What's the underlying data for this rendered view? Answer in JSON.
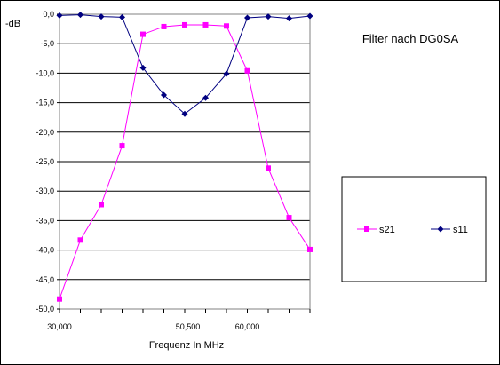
{
  "chart_data": {
    "type": "line",
    "title": "Filter nach DG0SA",
    "xlabel": "Frequenz In MHz",
    "ylabel": "-dB",
    "xlim": [
      30000,
      70000
    ],
    "ylim": [
      -50,
      0
    ],
    "x_tick_labels": [
      {
        "x": 30000,
        "label": "30,000"
      },
      {
        "x": 50500,
        "label": "50,500"
      },
      {
        "x": 60000,
        "label": "60,000"
      }
    ],
    "y_ticks": [
      0,
      -5,
      -10,
      -15,
      -20,
      -25,
      -30,
      -35,
      -40,
      -45,
      -50
    ],
    "y_tick_labels": [
      "0,0",
      "-5,0",
      "-10,0",
      "-15,0",
      "-20,0",
      "-25,0",
      "-30,0",
      "-35,0",
      "-40,0",
      "-45,0",
      "-50,0"
    ],
    "grid": "horizontal",
    "legend_position": "right",
    "series": [
      {
        "name": "s21",
        "color": "#ff00ff",
        "marker": "square",
        "points": [
          {
            "x": 30000,
            "y": -48.3
          },
          {
            "x": 33333,
            "y": -38.3
          },
          {
            "x": 36667,
            "y": -32.3
          },
          {
            "x": 40000,
            "y": -22.3
          },
          {
            "x": 43333,
            "y": -3.4
          },
          {
            "x": 46667,
            "y": -2.1
          },
          {
            "x": 50000,
            "y": -1.8
          },
          {
            "x": 53333,
            "y": -1.8
          },
          {
            "x": 56667,
            "y": -2.0
          },
          {
            "x": 60000,
            "y": -9.6
          },
          {
            "x": 63333,
            "y": -26.1
          },
          {
            "x": 66667,
            "y": -34.5
          },
          {
            "x": 70000,
            "y": -39.9
          }
        ]
      },
      {
        "name": "s11",
        "color": "#000080",
        "marker": "diamond",
        "points": [
          {
            "x": 30000,
            "y": -0.2
          },
          {
            "x": 33333,
            "y": -0.1
          },
          {
            "x": 36667,
            "y": -0.4
          },
          {
            "x": 40000,
            "y": -0.5
          },
          {
            "x": 43333,
            "y": -9.1
          },
          {
            "x": 46667,
            "y": -13.7
          },
          {
            "x": 50000,
            "y": -16.9
          },
          {
            "x": 53333,
            "y": -14.2
          },
          {
            "x": 56667,
            "y": -10.1
          },
          {
            "x": 60000,
            "y": -0.6
          },
          {
            "x": 63333,
            "y": -0.4
          },
          {
            "x": 66667,
            "y": -0.7
          },
          {
            "x": 70000,
            "y": -0.3
          }
        ]
      }
    ]
  }
}
